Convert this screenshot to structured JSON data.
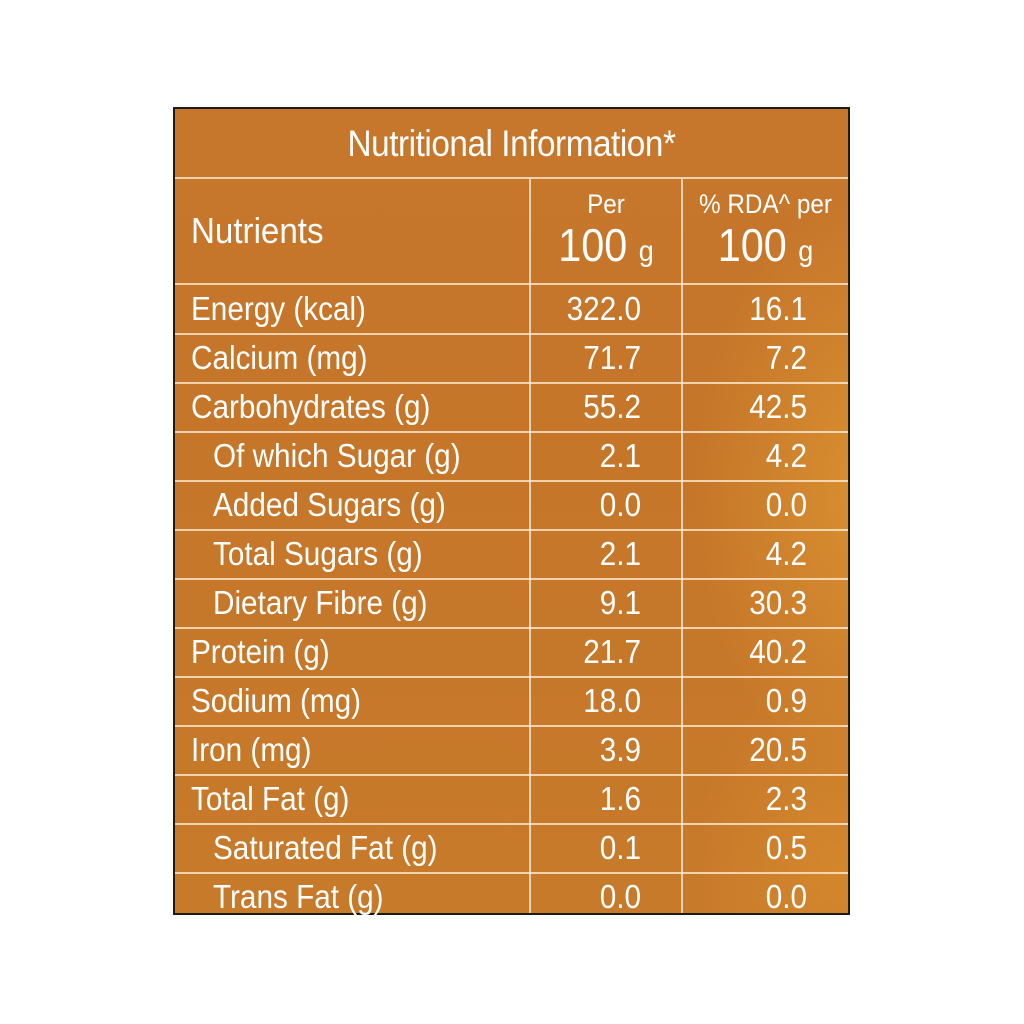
{
  "panel": {
    "title": "Nutritional Information*",
    "header": {
      "nutrients_label": "Nutrients",
      "per_col_top": "Per",
      "per_col_value": "100",
      "per_col_unit": "g",
      "rda_col_top": "% RDA^ per",
      "rda_col_value": "100",
      "rda_col_unit": "g"
    },
    "rows": [
      {
        "name": "Energy (kcal)",
        "per100": "322.0",
        "rda": "16.1"
      },
      {
        "name": "Calcium (mg)",
        "per100": "71.7",
        "rda": "7.2"
      },
      {
        "name": "Carbohydrates (g)",
        "per100": "55.2",
        "rda": "42.5"
      },
      {
        "name": "Of which Sugar (g)",
        "per100": "2.1",
        "rda": "4.2"
      },
      {
        "name": "Added Sugars (g)",
        "per100": "0.0",
        "rda": "0.0"
      },
      {
        "name": "Total Sugars (g)",
        "per100": "2.1",
        "rda": "4.2"
      },
      {
        "name": "Dietary Fibre (g)",
        "per100": "9.1",
        "rda": "30.3"
      },
      {
        "name": "Protein (g)",
        "per100": "21.7",
        "rda": "40.2"
      },
      {
        "name": "Sodium (mg)",
        "per100": "18.0",
        "rda": "0.9"
      },
      {
        "name": "Iron (mg)",
        "per100": "3.9",
        "rda": "20.5"
      },
      {
        "name": "Total Fat (g)",
        "per100": "1.6",
        "rda": "2.3"
      },
      {
        "name": "Saturated Fat (g)",
        "per100": "0.1",
        "rda": "0.5"
      },
      {
        "name": "Trans Fat (g)",
        "per100": "0.0",
        "rda": "0.0"
      }
    ],
    "colors": {
      "background": "#c7772c",
      "border": "#1f1a14",
      "text": "#ffffff",
      "grid_lines": "#fff0dc"
    }
  }
}
